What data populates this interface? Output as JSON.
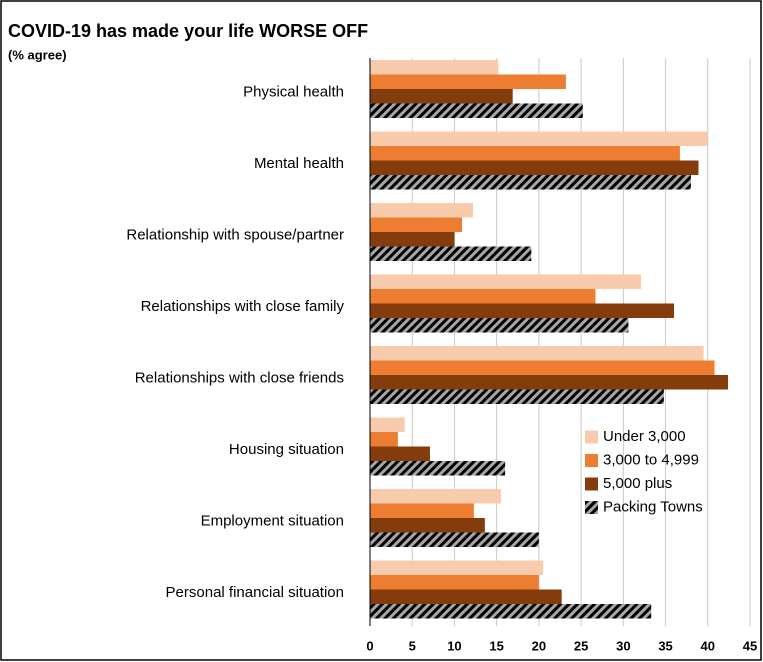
{
  "chart_data": {
    "type": "barh",
    "title": "COVID-19 has made your life WORSE OFF",
    "subtitle": "(% agree)",
    "categories": [
      "Physical health",
      "Mental health",
      "Relationship with spouse/partner",
      "Relationships with close family",
      "Relationships with close friends",
      "Housing situation",
      "Employment situation",
      "Personal financial situation"
    ],
    "series": [
      {
        "name": "Under 3,000",
        "color": "#f8cbad",
        "values": [
          15.2,
          40.0,
          12.2,
          32.1,
          39.5,
          4.1,
          15.5,
          20.5
        ]
      },
      {
        "name": "3,000 to 4,999",
        "color": "#ed7d31",
        "values": [
          23.2,
          36.7,
          10.9,
          26.7,
          40.8,
          3.3,
          12.3,
          20.0
        ]
      },
      {
        "name": "5,000 plus",
        "color": "#843c0c",
        "values": [
          16.9,
          38.9,
          10.0,
          36.0,
          42.4,
          7.1,
          13.6,
          22.7
        ]
      },
      {
        "name": "Packing Towns",
        "color": "#000000",
        "pattern": "hatch",
        "values": [
          25.2,
          38.0,
          19.1,
          30.6,
          34.8,
          16.0,
          20.0,
          33.3
        ]
      }
    ],
    "xlim": [
      0,
      45
    ],
    "xticks": [
      0,
      5,
      10,
      15,
      20,
      25,
      30,
      35,
      40,
      45
    ],
    "grid": true,
    "legend": "lower right"
  }
}
